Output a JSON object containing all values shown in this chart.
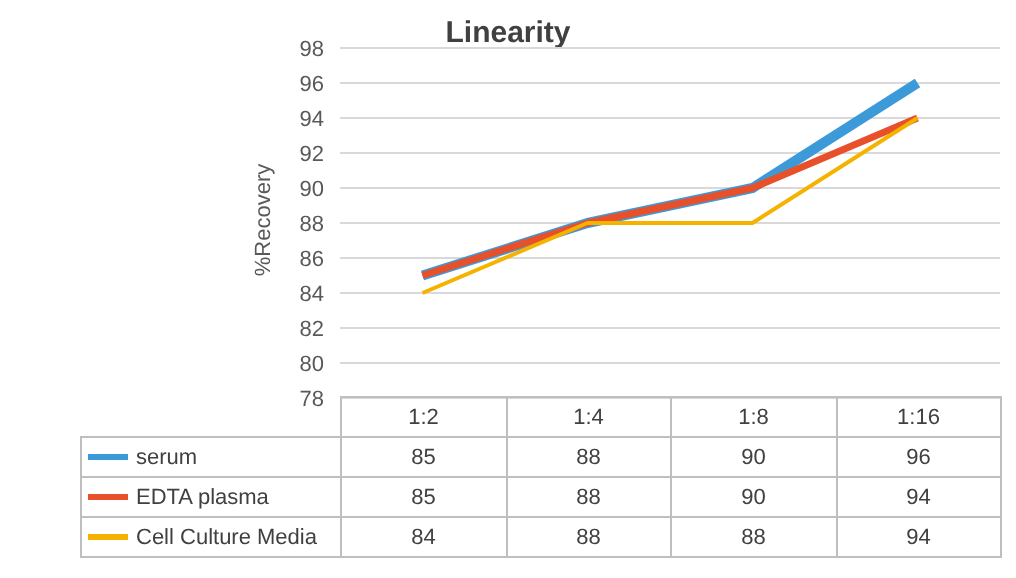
{
  "chart_data": {
    "type": "line",
    "title": "Linearity",
    "ylabel": "%Recovery",
    "categories": [
      "1:2",
      "1:4",
      "1:8",
      "1:16"
    ],
    "series": [
      {
        "name": "serum",
        "color": "#3c9ad8",
        "values": [
          85,
          88,
          90,
          96
        ]
      },
      {
        "name": "EDTA plasma",
        "color": "#e8502a",
        "values": [
          85,
          88,
          90,
          94
        ]
      },
      {
        "name": "Cell Culture Media",
        "color": "#f5b300",
        "values": [
          84,
          88,
          88,
          94
        ]
      }
    ],
    "ylim": [
      78,
      98
    ],
    "yticks": [
      78,
      80,
      82,
      84,
      86,
      88,
      90,
      92,
      94,
      96,
      98
    ],
    "grid": "y",
    "legend": "bottom",
    "data_labels": true,
    "marker": "none"
  }
}
